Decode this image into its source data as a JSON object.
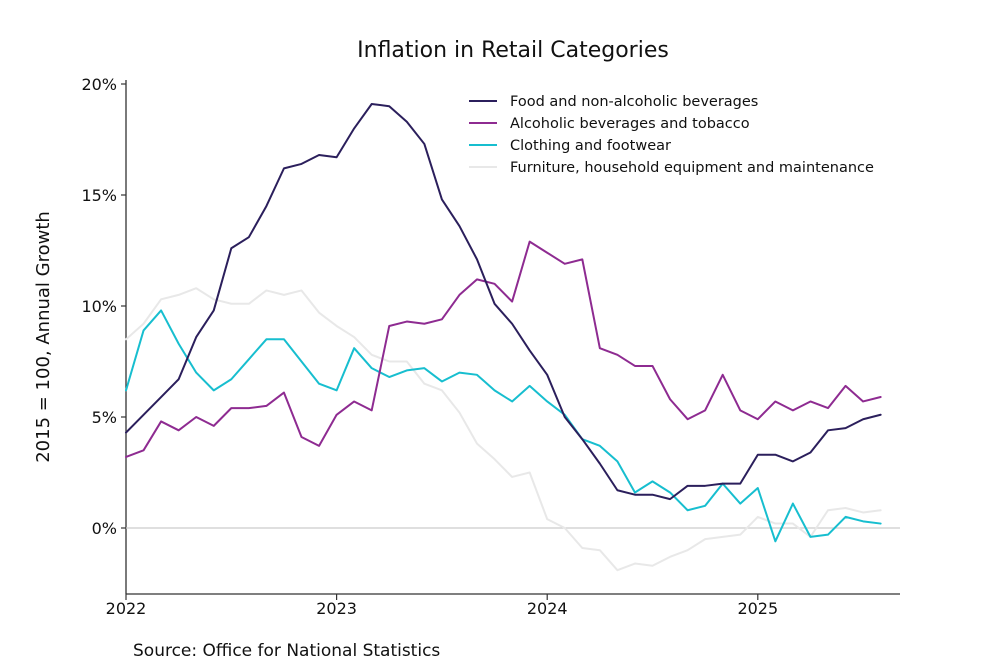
{
  "chart_data": {
    "type": "line",
    "title": "Inflation in Retail Categories",
    "xlabel": "",
    "ylabel": "2015 = 100, Annual Growth",
    "source": "Source: Office for National Statistics",
    "ylim": [
      -3,
      20
    ],
    "xlim": [
      "2022-01",
      "2025-08"
    ],
    "y_ticks": [
      0,
      5,
      10,
      15,
      20
    ],
    "y_tick_labels": [
      "0%",
      "5%",
      "10%",
      "15%",
      "20%"
    ],
    "x_ticks": [
      "2022-01",
      "2023-01",
      "2024-01",
      "2025-01"
    ],
    "x_tick_labels": [
      "2022",
      "2023",
      "2024",
      "2025"
    ],
    "reference_line_y": 0,
    "grid": false,
    "legend_position": "top-right",
    "x": [
      "2022-01",
      "2022-02",
      "2022-03",
      "2022-04",
      "2022-05",
      "2022-06",
      "2022-07",
      "2022-08",
      "2022-09",
      "2022-10",
      "2022-11",
      "2022-12",
      "2023-01",
      "2023-02",
      "2023-03",
      "2023-04",
      "2023-05",
      "2023-06",
      "2023-07",
      "2023-08",
      "2023-09",
      "2023-10",
      "2023-11",
      "2023-12",
      "2024-01",
      "2024-02",
      "2024-03",
      "2024-04",
      "2024-05",
      "2024-06",
      "2024-07",
      "2024-08",
      "2024-09",
      "2024-10",
      "2024-11",
      "2024-12",
      "2025-01",
      "2025-02",
      "2025-03",
      "2025-04",
      "2025-05",
      "2025-06",
      "2025-07",
      "2025-08"
    ],
    "series": [
      {
        "name": "Food and non-alcoholic beverages",
        "color": "#2b1f5c",
        "values": [
          4.3,
          5.1,
          5.9,
          6.7,
          8.6,
          9.8,
          12.6,
          13.1,
          14.5,
          16.2,
          16.4,
          16.8,
          16.7,
          18.0,
          19.1,
          19.0,
          18.3,
          17.3,
          14.8,
          13.6,
          12.1,
          10.1,
          9.2,
          8.0,
          6.9,
          5.0,
          4.0,
          2.9,
          1.7,
          1.5,
          1.5,
          1.3,
          1.9,
          1.9,
          2.0,
          2.0,
          3.3,
          3.3,
          3.0,
          3.4,
          4.4,
          4.5,
          4.9,
          5.1
        ]
      },
      {
        "name": "Alcoholic beverages and tobacco",
        "color": "#8e2b91",
        "values": [
          3.2,
          3.5,
          4.8,
          4.4,
          5.0,
          4.6,
          5.4,
          5.4,
          5.5,
          6.1,
          4.1,
          3.7,
          5.1,
          5.7,
          5.3,
          9.1,
          9.3,
          9.2,
          9.4,
          10.5,
          11.2,
          11.0,
          10.2,
          12.9,
          12.4,
          11.9,
          12.1,
          8.1,
          7.8,
          7.3,
          7.3,
          5.8,
          4.9,
          5.3,
          6.9,
          5.3,
          4.9,
          5.7,
          5.3,
          5.7,
          5.4,
          6.4,
          5.7,
          5.9
        ]
      },
      {
        "name": "Clothing and footwear",
        "color": "#17becf",
        "values": [
          6.2,
          8.9,
          9.8,
          8.3,
          7.0,
          6.2,
          6.7,
          7.6,
          8.5,
          8.5,
          7.5,
          6.5,
          6.2,
          8.1,
          7.2,
          6.8,
          7.1,
          7.2,
          6.6,
          7.0,
          6.9,
          6.2,
          5.7,
          6.4,
          5.7,
          5.1,
          4.0,
          3.7,
          3.0,
          1.6,
          2.1,
          1.6,
          0.8,
          1.0,
          2.0,
          1.1,
          1.8,
          -0.6,
          1.1,
          -0.4,
          -0.3,
          0.5,
          0.3,
          0.2
        ]
      },
      {
        "name": "Furniture, household equipment and maintenance",
        "color": "#e8e8e8",
        "values": [
          8.5,
          9.2,
          10.3,
          10.5,
          10.8,
          10.3,
          10.1,
          10.1,
          10.7,
          10.5,
          10.7,
          9.7,
          9.1,
          8.6,
          7.8,
          7.5,
          7.5,
          6.5,
          6.2,
          5.2,
          3.8,
          3.1,
          2.3,
          2.5,
          0.4,
          0.0,
          -0.9,
          -1.0,
          -1.9,
          -1.6,
          -1.7,
          -1.3,
          -1.0,
          -0.5,
          -0.4,
          -0.3,
          0.5,
          0.2,
          0.2,
          -0.4,
          0.8,
          0.9,
          0.7,
          0.8
        ]
      }
    ]
  }
}
